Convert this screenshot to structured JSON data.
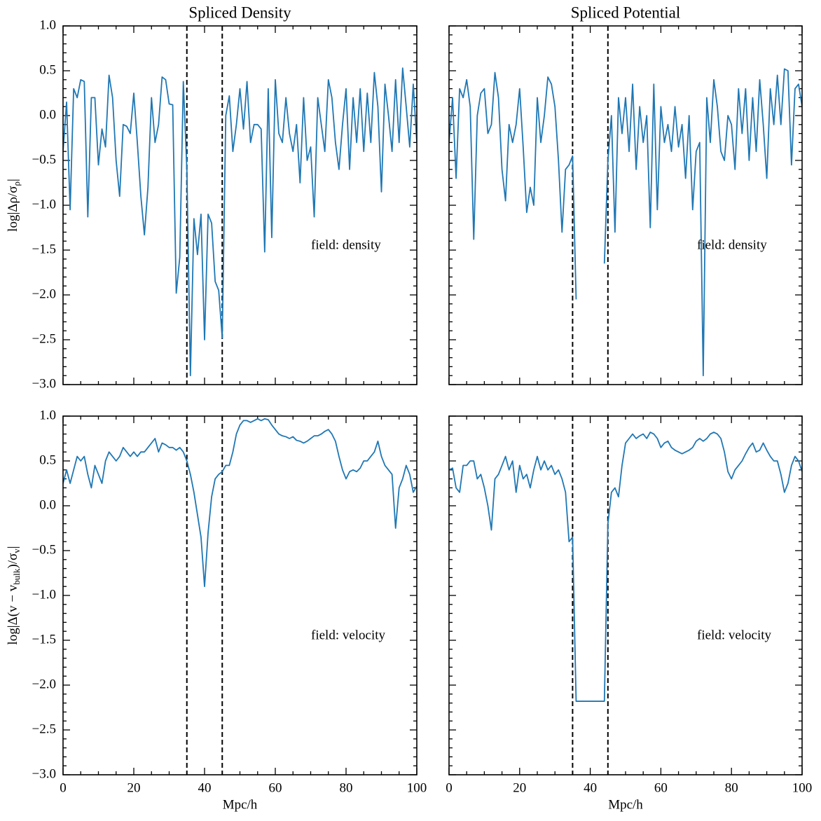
{
  "chart_data": [
    {
      "type": "line",
      "title": "Spliced Density",
      "ylabel": [
        "log|Δρ/σ",
        "ρ",
        "|"
      ],
      "annotation": "field: density",
      "x": [
        0,
        1,
        2,
        3,
        4,
        5,
        6,
        7,
        8,
        9,
        10,
        11,
        12,
        13,
        14,
        15,
        16,
        17,
        18,
        19,
        20,
        21,
        22,
        23,
        24,
        25,
        26,
        27,
        28,
        29,
        30,
        31,
        32,
        33,
        34,
        35,
        36,
        37,
        38,
        39,
        40,
        41,
        42,
        43,
        44,
        45,
        46,
        47,
        48,
        49,
        50,
        51,
        52,
        53,
        54,
        55,
        56,
        57,
        58,
        59,
        60,
        61,
        62,
        63,
        64,
        65,
        66,
        67,
        68,
        69,
        70,
        71,
        72,
        73,
        74,
        75,
        76,
        77,
        78,
        79,
        80,
        81,
        82,
        83,
        84,
        85,
        86,
        87,
        88,
        89,
        90,
        91,
        92,
        93,
        94,
        95,
        96,
        97,
        98,
        99,
        100
      ],
      "series": [
        {
          "color": "#1f77b4",
          "values": [
            -0.4,
            0.15,
            -1.05,
            0.3,
            0.2,
            0.4,
            0.38,
            -1.13,
            0.2,
            0.2,
            -0.55,
            -0.15,
            -0.35,
            0.45,
            0.2,
            -0.5,
            -0.9,
            -0.1,
            -0.12,
            -0.2,
            0.25,
            -0.3,
            -0.9,
            -1.33,
            -0.8,
            0.2,
            -0.3,
            -0.1,
            0.43,
            0.4,
            0.13,
            0.12,
            -1.98,
            -1.58,
            0.38,
            -0.6,
            -2.9,
            -1.15,
            -1.55,
            -1.1,
            -2.5,
            -1.1,
            -1.2,
            -1.85,
            -1.95,
            -2.48,
            0.0,
            0.22,
            -0.4,
            -0.1,
            0.3,
            -0.15,
            0.38,
            -0.3,
            -0.1,
            -0.1,
            -0.15,
            -1.52,
            0.3,
            -1.36,
            0.4,
            -0.2,
            -0.3,
            0.2,
            -0.2,
            -0.4,
            -0.1,
            -0.75,
            0.2,
            -0.5,
            -0.35,
            -1.13,
            0.2,
            -0.1,
            -0.4,
            0.4,
            0.2,
            -0.3,
            -0.6,
            -0.1,
            0.3,
            -0.6,
            0.2,
            -0.3,
            0.3,
            -0.4,
            0.25,
            -0.3,
            0.48,
            0.1,
            -0.85,
            0.35,
            0.0,
            -0.4,
            0.4,
            -0.3,
            0.53,
            0.1,
            -0.35,
            0.35,
            -0.3
          ]
        }
      ],
      "vlines": [
        35,
        45
      ],
      "xlim": [
        0,
        100
      ],
      "xticks": [
        0,
        20,
        40,
        60,
        80,
        100
      ],
      "minor_xticks": [
        5,
        10,
        15,
        25,
        30,
        35,
        45,
        50,
        55,
        65,
        70,
        75,
        85,
        90,
        95
      ],
      "ylim": [
        -3.0,
        1.0
      ],
      "yticks": [
        {
          "value": -3.0,
          "label": "−3.0"
        },
        {
          "value": -2.5,
          "label": "−2.5"
        },
        {
          "value": -2.0,
          "label": "−2.0"
        },
        {
          "value": -1.5,
          "label": "−1.5"
        },
        {
          "value": -1.0,
          "label": "−1.0"
        },
        {
          "value": -0.5,
          "label": "−0.5"
        },
        {
          "value": 0.0,
          "label": "0.0"
        },
        {
          "value": 0.5,
          "label": "0.5"
        },
        {
          "value": 1.0,
          "label": "1.0"
        }
      ],
      "minor_yticks": [
        -2.9,
        -2.8,
        -2.7,
        -2.6,
        -2.4,
        -2.3,
        -2.2,
        -2.1,
        -1.9,
        -1.8,
        -1.7,
        -1.6,
        -1.4,
        -1.3,
        -1.2,
        -1.1,
        -0.9,
        -0.8,
        -0.7,
        -0.6,
        -0.4,
        -0.3,
        -0.2,
        -0.1,
        0.1,
        0.2,
        0.3,
        0.4,
        0.6,
        0.7,
        0.8,
        0.9
      ]
    },
    {
      "type": "line",
      "title": "Spliced Potential",
      "annotation": "field: density",
      "x": [
        0,
        1,
        2,
        3,
        4,
        5,
        6,
        7,
        8,
        9,
        10,
        11,
        12,
        13,
        14,
        15,
        16,
        17,
        18,
        19,
        20,
        21,
        22,
        23,
        24,
        25,
        26,
        27,
        28,
        29,
        30,
        31,
        32,
        33,
        34,
        35,
        36,
        37,
        38,
        39,
        40,
        41,
        42,
        43,
        44,
        45,
        46,
        47,
        48,
        49,
        50,
        51,
        52,
        53,
        54,
        55,
        56,
        57,
        58,
        59,
        60,
        61,
        62,
        63,
        64,
        65,
        66,
        67,
        68,
        69,
        70,
        71,
        72,
        73,
        74,
        75,
        76,
        77,
        78,
        79,
        80,
        81,
        82,
        83,
        84,
        85,
        86,
        87,
        88,
        89,
        90,
        91,
        92,
        93,
        94,
        95,
        96,
        97,
        98,
        99,
        100
      ],
      "series": [
        {
          "color": "#1f77b4",
          "values": [
            -0.3,
            0.2,
            -0.7,
            0.3,
            0.2,
            0.4,
            0.1,
            -1.38,
            0.0,
            0.25,
            0.3,
            -0.2,
            -0.1,
            0.48,
            0.2,
            -0.6,
            -0.95,
            -0.1,
            -0.3,
            -0.1,
            0.3,
            -0.35,
            -1.08,
            -0.8,
            -1.0,
            0.2,
            -0.3,
            0.0,
            0.43,
            0.35,
            0.1,
            -0.5,
            -1.3,
            -0.6,
            -0.55,
            -0.45,
            -2.05,
            null,
            null,
            null,
            null,
            null,
            null,
            null,
            -1.65,
            -0.5,
            0.0,
            -1.3,
            0.2,
            -0.2,
            0.2,
            -0.4,
            0.35,
            -0.6,
            0.1,
            -0.3,
            0.0,
            -1.25,
            0.35,
            -1.05,
            0.1,
            -0.3,
            -0.1,
            -0.4,
            0.1,
            -0.35,
            -0.1,
            -0.7,
            0.0,
            -1.05,
            -0.4,
            -0.3,
            -2.9,
            0.2,
            -0.3,
            0.4,
            0.1,
            -0.4,
            -0.5,
            0.0,
            -0.1,
            -0.6,
            0.3,
            -0.2,
            0.3,
            -0.5,
            0.2,
            -0.4,
            0.4,
            -0.1,
            -0.7,
            0.3,
            -0.1,
            0.45,
            -0.1,
            0.52,
            0.5,
            -0.55,
            0.3,
            0.35,
            0.1
          ]
        }
      ],
      "vlines": [
        35,
        45
      ],
      "xlim": [
        0,
        100
      ],
      "xticks": [
        0,
        20,
        40,
        60,
        80,
        100
      ],
      "minor_xticks": [
        5,
        10,
        15,
        25,
        30,
        35,
        45,
        50,
        55,
        65,
        70,
        75,
        85,
        90,
        95
      ],
      "ylim": [
        -3.0,
        1.0
      ],
      "yticks": [
        -3.0,
        -2.5,
        -2.0,
        -1.5,
        -1.0,
        -0.5,
        0.0,
        0.5,
        1.0
      ],
      "minor_yticks": [
        -2.9,
        -2.8,
        -2.7,
        -2.6,
        -2.4,
        -2.3,
        -2.2,
        -2.1,
        -1.9,
        -1.8,
        -1.7,
        -1.6,
        -1.4,
        -1.3,
        -1.2,
        -1.1,
        -0.9,
        -0.8,
        -0.7,
        -0.6,
        -0.4,
        -0.3,
        -0.2,
        -0.1,
        0.1,
        0.2,
        0.3,
        0.4,
        0.6,
        0.7,
        0.8,
        0.9
      ]
    },
    {
      "type": "line",
      "xlabel": "Mpc/h",
      "ylabel": [
        "log|Δ(v − v",
        "bulk",
        ")/σ",
        "v",
        "|"
      ],
      "annotation": "field: velocity",
      "x": [
        0,
        1,
        2,
        3,
        4,
        5,
        6,
        7,
        8,
        9,
        10,
        11,
        12,
        13,
        14,
        15,
        16,
        17,
        18,
        19,
        20,
        21,
        22,
        23,
        24,
        25,
        26,
        27,
        28,
        29,
        30,
        31,
        32,
        33,
        34,
        35,
        36,
        37,
        38,
        39,
        40,
        41,
        42,
        43,
        44,
        45,
        46,
        47,
        48,
        49,
        50,
        51,
        52,
        53,
        54,
        55,
        56,
        57,
        58,
        59,
        60,
        61,
        62,
        63,
        64,
        65,
        66,
        67,
        68,
        69,
        70,
        71,
        72,
        73,
        74,
        75,
        76,
        77,
        78,
        79,
        80,
        81,
        82,
        83,
        84,
        85,
        86,
        87,
        88,
        89,
        90,
        91,
        92,
        93,
        94,
        95,
        96,
        97,
        98,
        99,
        100
      ],
      "series": [
        {
          "color": "#1f77b4",
          "values": [
            0.25,
            0.4,
            0.25,
            0.4,
            0.55,
            0.5,
            0.55,
            0.35,
            0.2,
            0.45,
            0.35,
            0.25,
            0.5,
            0.6,
            0.55,
            0.5,
            0.55,
            0.65,
            0.6,
            0.55,
            0.6,
            0.55,
            0.6,
            0.6,
            0.65,
            0.7,
            0.75,
            0.6,
            0.7,
            0.68,
            0.65,
            0.65,
            0.62,
            0.65,
            0.6,
            0.5,
            0.35,
            0.15,
            -0.1,
            -0.35,
            -0.9,
            -0.3,
            0.1,
            0.3,
            0.35,
            0.38,
            0.45,
            0.45,
            0.6,
            0.8,
            0.9,
            0.95,
            0.95,
            0.93,
            0.95,
            0.97,
            0.95,
            0.97,
            0.96,
            0.9,
            0.85,
            0.8,
            0.78,
            0.77,
            0.75,
            0.77,
            0.73,
            0.72,
            0.7,
            0.72,
            0.75,
            0.78,
            0.78,
            0.8,
            0.83,
            0.85,
            0.8,
            0.72,
            0.55,
            0.4,
            0.3,
            0.38,
            0.4,
            0.38,
            0.42,
            0.5,
            0.5,
            0.55,
            0.6,
            0.72,
            0.55,
            0.45,
            0.4,
            0.35,
            -0.25,
            0.2,
            0.3,
            0.45,
            0.35,
            0.15,
            0.22
          ]
        }
      ],
      "vlines": [
        35,
        45
      ],
      "xlim": [
        0,
        100
      ],
      "xticks": [
        0,
        20,
        40,
        60,
        80,
        100
      ],
      "minor_xticks": [
        5,
        10,
        15,
        25,
        30,
        35,
        45,
        50,
        55,
        65,
        70,
        75,
        85,
        90,
        95
      ],
      "ylim": [
        -3.0,
        1.0
      ],
      "yticks": [
        {
          "value": -3.0,
          "label": "−3.0"
        },
        {
          "value": -2.5,
          "label": "−2.5"
        },
        {
          "value": -2.0,
          "label": "−2.0"
        },
        {
          "value": -1.5,
          "label": "−1.5"
        },
        {
          "value": -1.0,
          "label": "−1.0"
        },
        {
          "value": -0.5,
          "label": "−0.5"
        },
        {
          "value": 0.0,
          "label": "0.0"
        },
        {
          "value": 0.5,
          "label": "0.5"
        },
        {
          "value": 1.0,
          "label": "1.0"
        }
      ],
      "minor_yticks": [
        -2.9,
        -2.8,
        -2.7,
        -2.6,
        -2.4,
        -2.3,
        -2.2,
        -2.1,
        -1.9,
        -1.8,
        -1.7,
        -1.6,
        -1.4,
        -1.3,
        -1.2,
        -1.1,
        -0.9,
        -0.8,
        -0.7,
        -0.6,
        -0.4,
        -0.3,
        -0.2,
        -0.1,
        0.1,
        0.2,
        0.3,
        0.4,
        0.6,
        0.7,
        0.8,
        0.9
      ]
    },
    {
      "type": "line",
      "xlabel": "Mpc/h",
      "annotation": "field: velocity",
      "x": [
        0,
        1,
        2,
        3,
        4,
        5,
        6,
        7,
        8,
        9,
        10,
        11,
        12,
        13,
        14,
        15,
        16,
        17,
        18,
        19,
        20,
        21,
        22,
        23,
        24,
        25,
        26,
        27,
        28,
        29,
        30,
        31,
        32,
        33,
        34,
        35,
        36,
        37,
        38,
        39,
        40,
        41,
        42,
        43,
        44,
        45,
        46,
        47,
        48,
        49,
        50,
        51,
        52,
        53,
        54,
        55,
        56,
        57,
        58,
        59,
        60,
        61,
        62,
        63,
        64,
        65,
        66,
        67,
        68,
        69,
        70,
        71,
        72,
        73,
        74,
        75,
        76,
        77,
        78,
        79,
        80,
        81,
        82,
        83,
        84,
        85,
        86,
        87,
        88,
        89,
        90,
        91,
        92,
        93,
        94,
        95,
        96,
        97,
        98,
        99,
        100
      ],
      "series": [
        {
          "color": "#1f77b4",
          "values": [
            0.4,
            0.42,
            0.2,
            0.15,
            0.45,
            0.45,
            0.5,
            0.5,
            0.3,
            0.35,
            0.2,
            0.0,
            -0.27,
            0.3,
            0.35,
            0.45,
            0.55,
            0.4,
            0.5,
            0.15,
            0.45,
            0.3,
            0.35,
            0.2,
            0.4,
            0.55,
            0.4,
            0.5,
            0.4,
            0.45,
            0.35,
            0.4,
            0.3,
            0.15,
            -0.4,
            -0.35,
            -2.18,
            -2.18,
            -2.18,
            -2.18,
            -2.18,
            -2.18,
            -2.18,
            -2.18,
            -2.18,
            -0.2,
            0.15,
            0.2,
            0.1,
            0.45,
            0.7,
            0.75,
            0.8,
            0.75,
            0.78,
            0.8,
            0.75,
            0.82,
            0.8,
            0.75,
            0.65,
            0.7,
            0.72,
            0.65,
            0.62,
            0.6,
            0.58,
            0.6,
            0.62,
            0.65,
            0.72,
            0.75,
            0.72,
            0.75,
            0.8,
            0.82,
            0.8,
            0.75,
            0.6,
            0.38,
            0.3,
            0.4,
            0.45,
            0.5,
            0.58,
            0.65,
            0.7,
            0.6,
            0.62,
            0.7,
            0.62,
            0.55,
            0.5,
            0.5,
            0.35,
            0.15,
            0.25,
            0.45,
            0.55,
            0.5,
            0.38
          ]
        }
      ],
      "vlines": [
        35,
        45
      ],
      "xlim": [
        0,
        100
      ],
      "xticks": [
        0,
        20,
        40,
        60,
        80,
        100
      ],
      "minor_xticks": [
        5,
        10,
        15,
        25,
        30,
        35,
        45,
        50,
        55,
        65,
        70,
        75,
        85,
        90,
        95
      ],
      "ylim": [
        -3.0,
        1.0
      ],
      "yticks": [
        -3.0,
        -2.5,
        -2.0,
        -1.5,
        -1.0,
        -0.5,
        0.0,
        0.5,
        1.0
      ],
      "minor_yticks": [
        -2.9,
        -2.8,
        -2.7,
        -2.6,
        -2.4,
        -2.3,
        -2.2,
        -2.1,
        -1.9,
        -1.8,
        -1.7,
        -1.6,
        -1.4,
        -1.3,
        -1.2,
        -1.1,
        -0.9,
        -0.8,
        -0.7,
        -0.6,
        -0.4,
        -0.3,
        -0.2,
        -0.1,
        0.1,
        0.2,
        0.3,
        0.4,
        0.6,
        0.7,
        0.8,
        0.9
      ]
    }
  ]
}
